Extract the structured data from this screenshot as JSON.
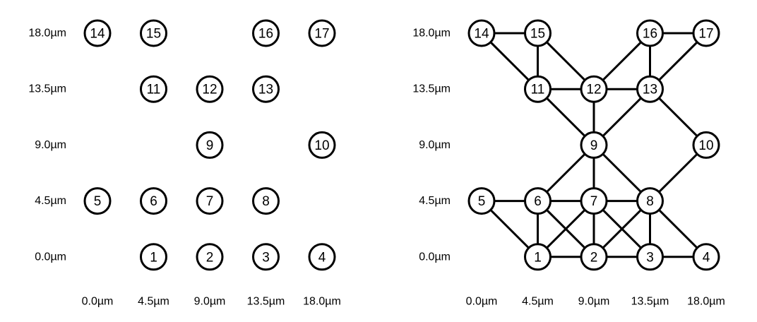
{
  "panels": [
    {
      "name": "atoms",
      "y_ticks": [
        "18.0µm",
        "13.5µm",
        "9.0µm",
        "4.5µm",
        "0.0µm"
      ],
      "x_ticks": [
        "0.0µm",
        "4.5µm",
        "9.0µm",
        "13.5µm",
        "18.0µm"
      ],
      "show_edges": false
    },
    {
      "name": "graph",
      "y_ticks": [
        "18.0µm",
        "13.5µm",
        "9.0µm",
        "4.5µm",
        "0.0µm"
      ],
      "x_ticks": [
        "0.0µm",
        "4.5µm",
        "9.0µm",
        "13.5µm",
        "18.0µm"
      ],
      "show_edges": true
    }
  ],
  "nodes": [
    {
      "id": "1",
      "x_um": 4.5,
      "y_um": 0.0
    },
    {
      "id": "2",
      "x_um": 9.0,
      "y_um": 0.0
    },
    {
      "id": "3",
      "x_um": 13.5,
      "y_um": 0.0
    },
    {
      "id": "4",
      "x_um": 18.0,
      "y_um": 0.0
    },
    {
      "id": "5",
      "x_um": 0.0,
      "y_um": 4.5
    },
    {
      "id": "6",
      "x_um": 4.5,
      "y_um": 4.5
    },
    {
      "id": "7",
      "x_um": 9.0,
      "y_um": 4.5
    },
    {
      "id": "8",
      "x_um": 13.5,
      "y_um": 4.5
    },
    {
      "id": "9",
      "x_um": 9.0,
      "y_um": 9.0
    },
    {
      "id": "10",
      "x_um": 18.0,
      "y_um": 9.0
    },
    {
      "id": "11",
      "x_um": 4.5,
      "y_um": 13.5
    },
    {
      "id": "12",
      "x_um": 9.0,
      "y_um": 13.5
    },
    {
      "id": "13",
      "x_um": 13.5,
      "y_um": 13.5
    },
    {
      "id": "14",
      "x_um": 0.0,
      "y_um": 18.0
    },
    {
      "id": "15",
      "x_um": 4.5,
      "y_um": 18.0
    },
    {
      "id": "16",
      "x_um": 13.5,
      "y_um": 18.0
    },
    {
      "id": "17",
      "x_um": 18.0,
      "y_um": 18.0
    }
  ],
  "edges": [
    [
      "14",
      "15"
    ],
    [
      "16",
      "17"
    ],
    [
      "14",
      "11"
    ],
    [
      "15",
      "11"
    ],
    [
      "15",
      "12"
    ],
    [
      "16",
      "12"
    ],
    [
      "16",
      "13"
    ],
    [
      "17",
      "13"
    ],
    [
      "11",
      "12"
    ],
    [
      "12",
      "13"
    ],
    [
      "11",
      "9"
    ],
    [
      "12",
      "9"
    ],
    [
      "13",
      "9"
    ],
    [
      "13",
      "10"
    ],
    [
      "9",
      "6"
    ],
    [
      "9",
      "7"
    ],
    [
      "9",
      "8"
    ],
    [
      "10",
      "8"
    ],
    [
      "5",
      "6"
    ],
    [
      "6",
      "7"
    ],
    [
      "7",
      "8"
    ],
    [
      "5",
      "1"
    ],
    [
      "6",
      "1"
    ],
    [
      "6",
      "2"
    ],
    [
      "7",
      "1"
    ],
    [
      "7",
      "2"
    ],
    [
      "7",
      "3"
    ],
    [
      "8",
      "2"
    ],
    [
      "8",
      "3"
    ],
    [
      "8",
      "4"
    ],
    [
      "1",
      "2"
    ],
    [
      "2",
      "3"
    ],
    [
      "3",
      "4"
    ]
  ],
  "colors": {
    "stroke": "#000000",
    "fill": "#ffffff",
    "text": "#000000"
  }
}
